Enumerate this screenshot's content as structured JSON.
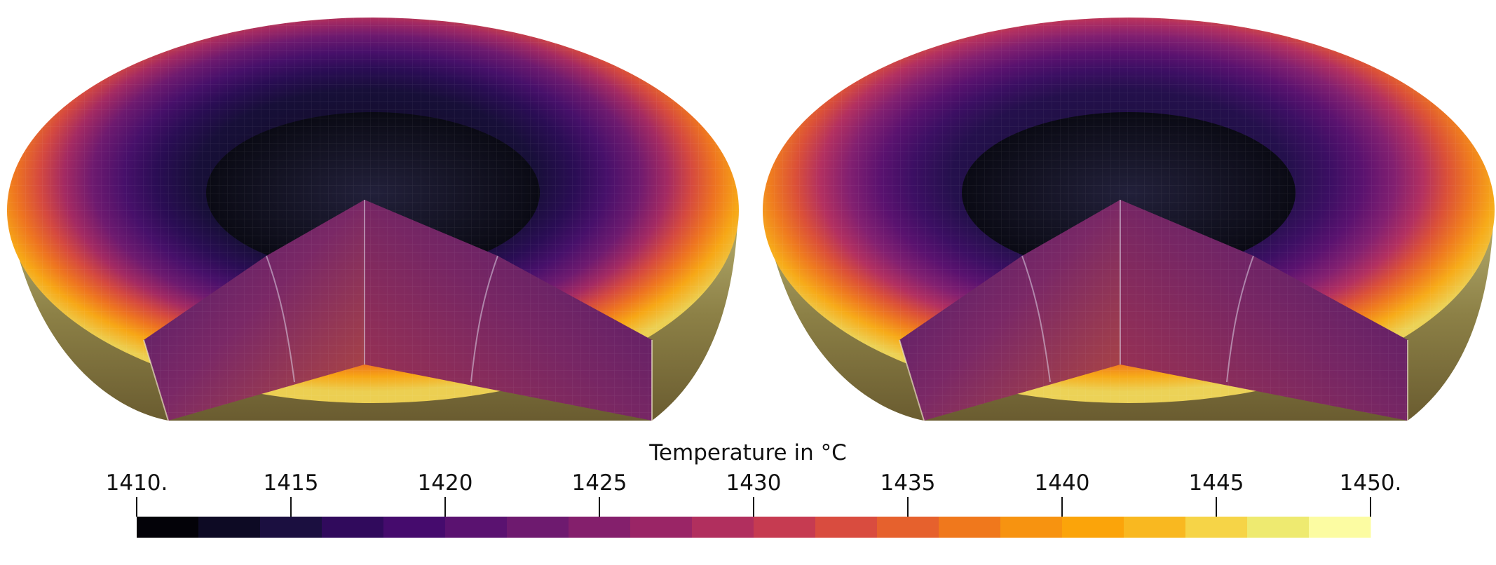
{
  "colorbar": {
    "title": "Temperature in °C",
    "min": 1410,
    "max": 1450,
    "tick_labels": [
      "1410.",
      "1415",
      "1420",
      "1425",
      "1430",
      "1435",
      "1440",
      "1445",
      "1450."
    ],
    "tick_values": [
      1410,
      1415,
      1420,
      1425,
      1430,
      1435,
      1440,
      1445,
      1450
    ],
    "colors": [
      "#030208",
      "#0d0a24",
      "#1b0f40",
      "#300a5c",
      "#450b6d",
      "#5a1270",
      "#6e1a6f",
      "#841f6c",
      "#9a2566",
      "#b12f5e",
      "#c63b51",
      "#d94c3f",
      "#e6612d",
      "#f0781c",
      "#f79310",
      "#fba40a",
      "#f9b820",
      "#f6d447",
      "#eeea70",
      "#fcfca2"
    ]
  },
  "panels": [
    {
      "name": "temperature-field-left"
    },
    {
      "name": "temperature-field-right"
    }
  ]
}
